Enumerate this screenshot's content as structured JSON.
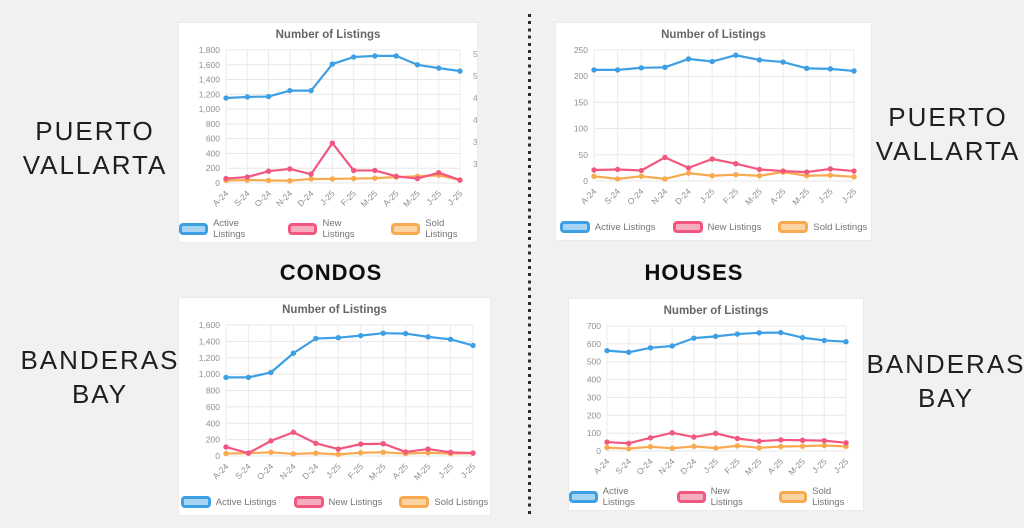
{
  "page": {
    "background_color": "#f2f1ef",
    "divider_style": "vertical-dotted-black"
  },
  "region_labels": {
    "puerto_vallarta": [
      "PUERTO",
      "VALLARTA"
    ],
    "banderas_bay": [
      "BANDERAS",
      "BAY"
    ]
  },
  "column_labels": {
    "condos": "CONDOS",
    "houses": "HOUSES"
  },
  "legend": [
    {
      "label": "Active Listings",
      "border": "#3d9fe4",
      "fill": "#a8d4f3"
    },
    {
      "label": "New Listings",
      "border": "#f1577f",
      "fill": "#f7adc0"
    },
    {
      "label": "Sold Listings",
      "border": "#f9a94f",
      "fill": "#fcd4a2"
    }
  ],
  "chart_data": [
    {
      "type": "line",
      "region": "Puerto Vallarta",
      "property_type": "Condos",
      "title": "Number of Listings",
      "xlabel": "",
      "ylabel": "",
      "categories": [
        "A-24",
        "S-24",
        "O-24",
        "N-24",
        "D-24",
        "J-25",
        "F-25",
        "M-25",
        "A-25",
        "M-25",
        "J-25",
        "J-25"
      ],
      "ylim": [
        0,
        1800
      ],
      "ystep": 200,
      "grid": true,
      "legend_position": "bottom",
      "series": [
        {
          "name": "Active Listings",
          "color": "#3d9fe4",
          "values": [
            1150,
            1165,
            1170,
            1250,
            1250,
            1610,
            1705,
            1720,
            1720,
            1600,
            1555,
            1515
          ]
        },
        {
          "name": "New Listings",
          "color": "#f1577f",
          "values": [
            60,
            80,
            160,
            190,
            120,
            540,
            170,
            170,
            90,
            60,
            140,
            40
          ]
        },
        {
          "name": "Sold Listings",
          "color": "#f9a94f",
          "values": [
            35,
            40,
            35,
            30,
            55,
            55,
            60,
            65,
            80,
            90,
            105,
            40
          ]
        }
      ],
      "clipped_right_axis_fragments": [
        "5",
        "5",
        "4",
        "4",
        "3",
        "3"
      ]
    },
    {
      "type": "line",
      "region": "Puerto Vallarta",
      "property_type": "Houses",
      "title": "Number of Listings",
      "xlabel": "",
      "ylabel": "",
      "categories": [
        "A-24",
        "S-24",
        "O-24",
        "N-24",
        "D-24",
        "J-25",
        "F-25",
        "M-25",
        "A-25",
        "M-25",
        "J-25",
        "J-25"
      ],
      "ylim": [
        0,
        250
      ],
      "ystep": 50,
      "grid": true,
      "legend_position": "bottom",
      "series": [
        {
          "name": "Active Listings",
          "color": "#3d9fe4",
          "values": [
            212,
            212,
            216,
            217,
            233,
            228,
            240,
            231,
            227,
            215,
            214,
            210
          ]
        },
        {
          "name": "New Listings",
          "color": "#f1577f",
          "values": [
            21,
            22,
            20,
            45,
            25,
            42,
            33,
            22,
            19,
            17,
            23,
            19
          ]
        },
        {
          "name": "Sold Listings",
          "color": "#f9a94f",
          "values": [
            9,
            4,
            9,
            4,
            15,
            10,
            12,
            10,
            17,
            10,
            11,
            8
          ]
        }
      ]
    },
    {
      "type": "line",
      "region": "Banderas Bay",
      "property_type": "Condos",
      "title": "Number of Listings",
      "xlabel": "",
      "ylabel": "",
      "categories": [
        "A-24",
        "S-24",
        "O-24",
        "N-24",
        "D-24",
        "J-25",
        "F-25",
        "M-25",
        "A-25",
        "M-25",
        "J-25",
        "J-25"
      ],
      "ylim": [
        0,
        1600
      ],
      "ystep": 200,
      "grid": true,
      "legend_position": "bottom",
      "series": [
        {
          "name": "Active Listings",
          "color": "#3d9fe4",
          "values": [
            960,
            960,
            1020,
            1255,
            1435,
            1445,
            1470,
            1500,
            1495,
            1455,
            1425,
            1350
          ]
        },
        {
          "name": "New Listings",
          "color": "#f1577f",
          "values": [
            110,
            35,
            185,
            290,
            155,
            85,
            145,
            150,
            50,
            85,
            45,
            35
          ]
        },
        {
          "name": "Sold Listings",
          "color": "#f9a94f",
          "values": [
            30,
            35,
            45,
            25,
            35,
            20,
            40,
            45,
            30,
            40,
            30,
            35
          ]
        }
      ]
    },
    {
      "type": "line",
      "region": "Banderas Bay",
      "property_type": "Houses",
      "title": "Number of Listings",
      "xlabel": "",
      "ylabel": "",
      "categories": [
        "A-24",
        "S-24",
        "O-24",
        "N-24",
        "D-24",
        "J-25",
        "F-25",
        "M-25",
        "A-25",
        "M-25",
        "J-25",
        "J-25"
      ],
      "ylim": [
        0,
        700
      ],
      "ystep": 100,
      "grid": true,
      "legend_position": "bottom",
      "series": [
        {
          "name": "Active Listings",
          "color": "#3d9fe4",
          "values": [
            562,
            553,
            578,
            588,
            632,
            642,
            655,
            662,
            663,
            635,
            619,
            612
          ]
        },
        {
          "name": "New Listings",
          "color": "#f1577f",
          "values": [
            50,
            43,
            74,
            102,
            78,
            99,
            70,
            55,
            62,
            60,
            58,
            46
          ]
        },
        {
          "name": "Sold Listings",
          "color": "#f9a94f",
          "values": [
            19,
            13,
            24,
            15,
            26,
            16,
            29,
            18,
            25,
            27,
            31,
            26
          ]
        }
      ]
    }
  ]
}
